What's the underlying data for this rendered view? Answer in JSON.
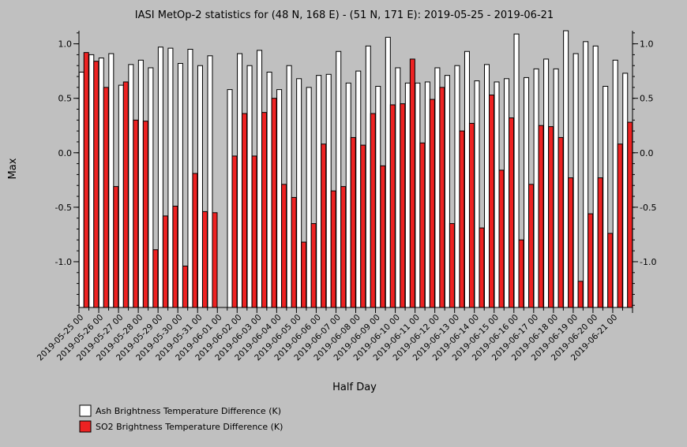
{
  "chart_data": {
    "type": "bar",
    "title": "IASI MetOp-2 statistics for (48 N, 168 E) - (51 N, 171 E): 2019-05-25 - 2019-06-21",
    "xlabel": "Half Day",
    "ylabel": "Max",
    "ylim": [
      -1.42,
      1.12
    ],
    "yticks": [
      -1.0,
      -0.5,
      0.0,
      0.5,
      1.0
    ],
    "ytick_labels": [
      "-1.0",
      "-0.5",
      "0.0",
      "0.5",
      "1.0"
    ],
    "grid": false,
    "legend_position": "bottom-left",
    "categories": [
      "2019-05-25 00",
      "2019-05-25 12",
      "2019-05-26 00",
      "2019-05-26 12",
      "2019-05-27 00",
      "2019-05-27 12",
      "2019-05-28 00",
      "2019-05-28 12",
      "2019-05-29 00",
      "2019-05-29 12",
      "2019-05-30 00",
      "2019-05-30 12",
      "2019-05-31 00",
      "2019-05-31 12",
      "2019-06-01 00",
      "2019-06-01 12",
      "2019-06-02 00",
      "2019-06-02 12",
      "2019-06-03 00",
      "2019-06-03 12",
      "2019-06-04 00",
      "2019-06-04 12",
      "2019-06-05 00",
      "2019-06-05 12",
      "2019-06-06 00",
      "2019-06-06 12",
      "2019-06-07 00",
      "2019-06-07 12",
      "2019-06-08 00",
      "2019-06-08 12",
      "2019-06-09 00",
      "2019-06-09 12",
      "2019-06-10 00",
      "2019-06-10 12",
      "2019-06-11 00",
      "2019-06-11 12",
      "2019-06-12 00",
      "2019-06-12 12",
      "2019-06-13 00",
      "2019-06-13 12",
      "2019-06-14 00",
      "2019-06-14 12",
      "2019-06-15 00",
      "2019-06-15 12",
      "2019-06-16 00",
      "2019-06-16 12",
      "2019-06-17 00",
      "2019-06-17 12",
      "2019-06-18 00",
      "2019-06-18 12",
      "2019-06-19 00",
      "2019-06-19 12",
      "2019-06-20 00",
      "2019-06-20 12",
      "2019-06-21 00",
      "2019-06-21 12"
    ],
    "tick_labels": [
      "2019-05-25 00",
      "2019-05-26 00",
      "2019-05-27 00",
      "2019-05-28 00",
      "2019-05-29 00",
      "2019-05-30 00",
      "2019-05-31 00",
      "2019-06-01 00",
      "2019-06-02 00",
      "2019-06-03 00",
      "2019-06-04 00",
      "2019-06-05 00",
      "2019-06-06 00",
      "2019-06-07 00",
      "2019-06-08 00",
      "2019-06-09 00",
      "2019-06-10 00",
      "2019-06-11 00",
      "2019-06-12 00",
      "2019-06-13 00",
      "2019-06-14 00",
      "2019-06-15 00",
      "2019-06-16 00",
      "2019-06-17 00",
      "2019-06-18 00",
      "2019-06-19 00",
      "2019-06-20 00",
      "2019-06-21 00"
    ],
    "series": [
      {
        "name": "Ash Brightness Temperature Difference (K)",
        "color": "#ffffff",
        "values": [
          0.74,
          0.9,
          0.87,
          0.91,
          0.62,
          0.81,
          0.85,
          0.78,
          0.97,
          0.96,
          0.82,
          0.95,
          0.8,
          0.89,
          null,
          0.58,
          0.91,
          0.8,
          0.94,
          0.74,
          0.58,
          0.8,
          0.68,
          0.6,
          0.71,
          0.72,
          0.93,
          0.64,
          0.75,
          0.98,
          0.61,
          1.06,
          0.78,
          0.64,
          0.64,
          0.65,
          0.78,
          0.71,
          0.8,
          0.93,
          0.66,
          0.81,
          0.65,
          0.68,
          1.09,
          0.69,
          0.77,
          0.86,
          0.77,
          1.12,
          0.91,
          1.02,
          0.98,
          0.61,
          0.85,
          0.73
        ]
      },
      {
        "name": "SO2 Brightness Temperature Difference (K)",
        "color": "#ee2222",
        "values": [
          0.92,
          0.84,
          0.6,
          -0.31,
          0.65,
          0.3,
          0.29,
          -0.89,
          -0.58,
          -0.49,
          -1.04,
          -0.19,
          -0.54,
          -0.55,
          null,
          -0.03,
          0.36,
          -0.03,
          0.37,
          0.5,
          -0.29,
          -0.41,
          -0.82,
          -0.65,
          0.08,
          -0.35,
          -0.31,
          0.14,
          0.07,
          0.36,
          -0.12,
          0.44,
          0.45,
          0.86,
          0.09,
          0.49,
          0.6,
          -0.65,
          0.2,
          0.27,
          -0.69,
          0.53,
          -0.16,
          0.32,
          -0.8,
          -0.29,
          0.25,
          0.24,
          0.14,
          -0.23,
          -1.18,
          -0.56,
          -0.23,
          -0.74,
          0.08,
          0.28
        ]
      }
    ]
  }
}
